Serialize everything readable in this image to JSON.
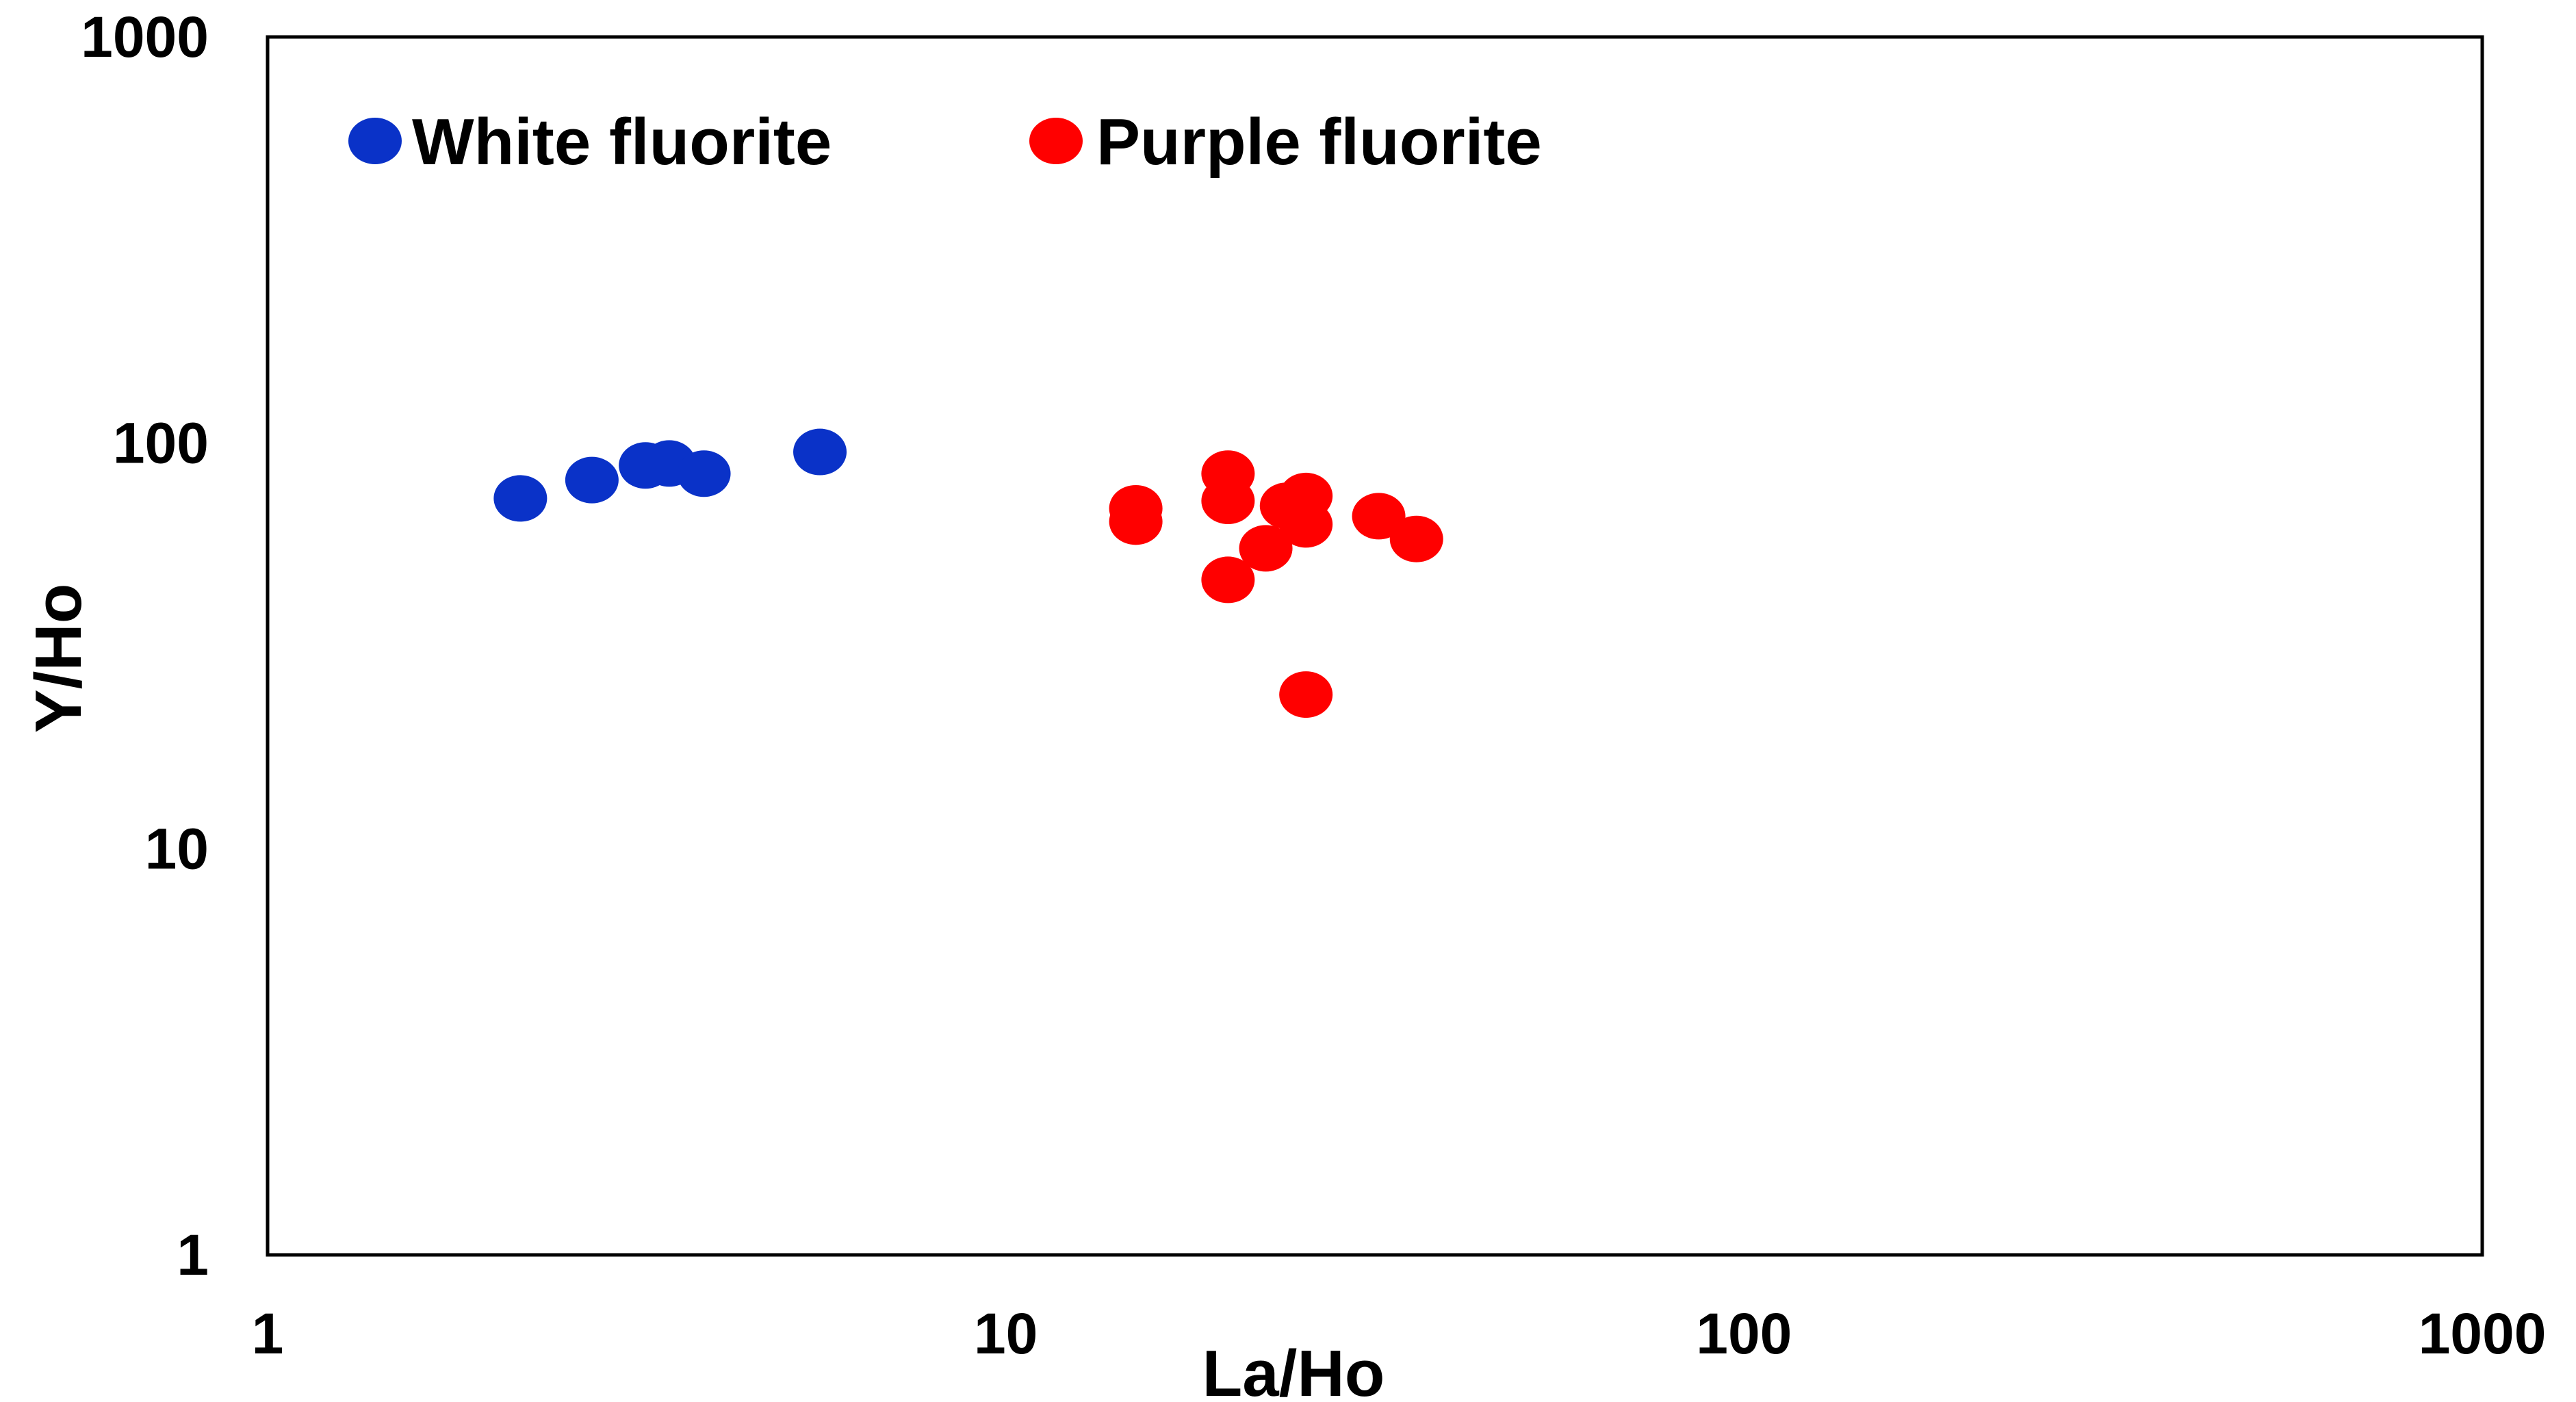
{
  "chart_data": {
    "type": "scatter",
    "title": "",
    "xlabel": "La/Ho",
    "ylabel": "Y/Ho",
    "x_scale": "log",
    "y_scale": "log",
    "xlim": [
      1,
      1000
    ],
    "ylim": [
      1,
      1000
    ],
    "x_ticks": [
      "1",
      "10",
      "100",
      "1000"
    ],
    "y_ticks": [
      "1",
      "10",
      "100",
      "1000"
    ],
    "grid": false,
    "legend_position": "top-left",
    "series": [
      {
        "name": "White fluorite",
        "color": "#0a32c8",
        "points": [
          {
            "x": 2.2,
            "y": 73
          },
          {
            "x": 2.75,
            "y": 81
          },
          {
            "x": 3.25,
            "y": 88
          },
          {
            "x": 3.5,
            "y": 89
          },
          {
            "x": 3.9,
            "y": 84
          },
          {
            "x": 5.6,
            "y": 95
          }
        ]
      },
      {
        "name": "Purple fluorite",
        "color": "#ff0000",
        "points": [
          {
            "x": 15,
            "y": 69
          },
          {
            "x": 15,
            "y": 64
          },
          {
            "x": 20,
            "y": 84
          },
          {
            "x": 20,
            "y": 72
          },
          {
            "x": 20,
            "y": 46
          },
          {
            "x": 22.5,
            "y": 55
          },
          {
            "x": 24,
            "y": 70
          },
          {
            "x": 25.5,
            "y": 74
          },
          {
            "x": 25.5,
            "y": 63
          },
          {
            "x": 25.5,
            "y": 24
          },
          {
            "x": 32,
            "y": 66
          },
          {
            "x": 36,
            "y": 58
          }
        ]
      }
    ]
  }
}
